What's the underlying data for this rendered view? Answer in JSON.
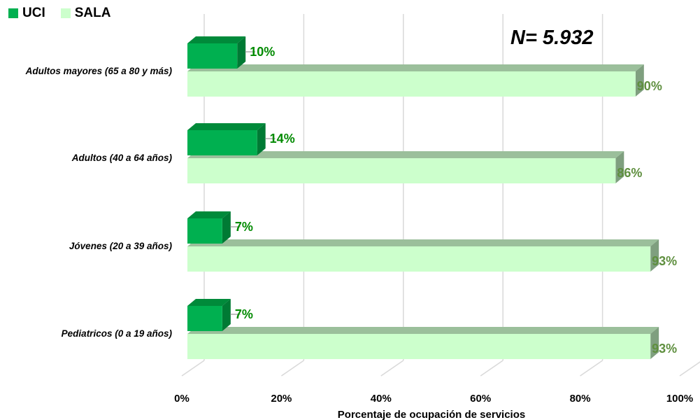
{
  "chart_data": {
    "type": "bar",
    "orientation": "horizontal",
    "three_d": true,
    "categories": [
      "Adultos mayores (65 a 80 y más)",
      "Adultos (40 a 64 años)",
      "Jóvenes (20 a 39 años)",
      "Pediatricos (0 a 19 años)"
    ],
    "series": [
      {
        "name": "UCI",
        "values": [
          10,
          14,
          7,
          7
        ],
        "labels": [
          "10%",
          "14%",
          "7%",
          "7%"
        ],
        "color": "#00b050",
        "label_color": "#008a00"
      },
      {
        "name": "SALA",
        "values": [
          90,
          86,
          93,
          93
        ],
        "labels": [
          "90%",
          "86%",
          "93%",
          "93%"
        ],
        "color": "#ccffcc",
        "label_color": "#5f8f3f"
      }
    ],
    "xlabel": "Porcentaje de ocupación de servicios",
    "xticks": [
      "0%",
      "20%",
      "40%",
      "60%",
      "80%",
      "100%"
    ],
    "xlim": [
      0,
      100
    ],
    "grid": true,
    "legend_position": "top-left",
    "annotation": "N= 5.932"
  }
}
